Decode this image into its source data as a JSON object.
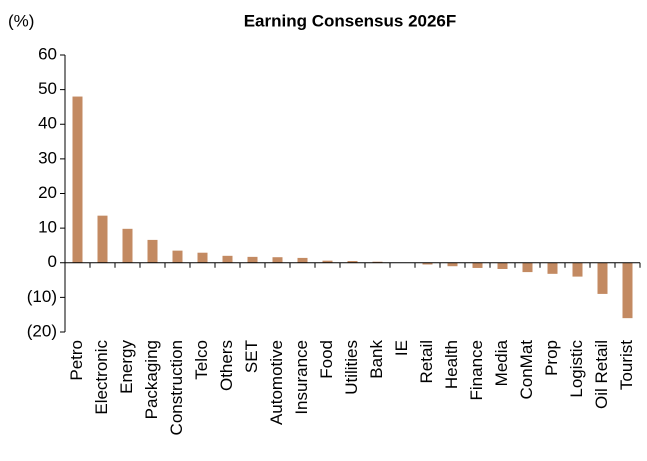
{
  "chart_data": {
    "type": "bar",
    "title": "Earning Consensus 2026F",
    "y_label": "(%)",
    "categories": [
      "Petro",
      "Electronic",
      "Energy",
      "Packaging",
      "Construction",
      "Telco",
      "Others",
      "SET",
      "Automotive",
      "Insurance",
      "Food",
      "Utilities",
      "Bank",
      "IE",
      "Retail",
      "Health",
      "Finance",
      "Media",
      "ConMat",
      "Prop",
      "Logistic",
      "Oil Retail",
      "Tourist"
    ],
    "values": [
      48,
      13.6,
      9.8,
      6.6,
      3.5,
      2.9,
      2.0,
      1.7,
      1.6,
      1.4,
      0.6,
      0.5,
      0.3,
      0,
      -0.5,
      -1.0,
      -1.5,
      -1.8,
      -2.7,
      -3.2,
      -4.0,
      -9,
      -16
    ],
    "color": "#c38a62",
    "ylim": [
      -20,
      60
    ],
    "yticks": [
      {
        "value": -20,
        "label": "(20)"
      },
      {
        "value": -10,
        "label": "(10)"
      },
      0,
      10,
      20,
      30,
      40,
      50,
      60
    ],
    "grid": false
  }
}
